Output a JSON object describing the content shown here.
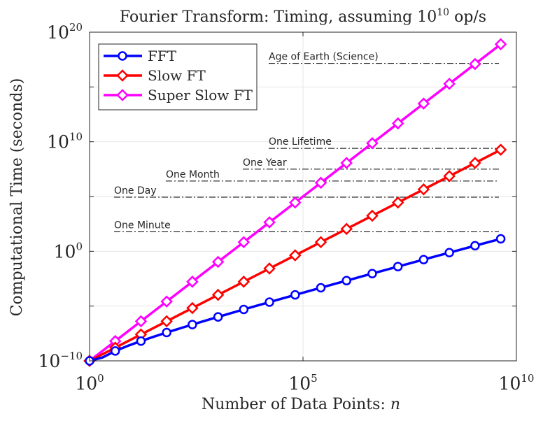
{
  "chart_data": {
    "type": "line",
    "title": "Fourier Transform: Timing, assuming 10^10 op/s",
    "title_parts": {
      "prefix": "Fourier Transform: Timing, assuming ",
      "base": "10",
      "exponent": "10",
      "suffix": " op/s"
    },
    "xlabel": "Number of Data Points: n",
    "xlabel_parts": {
      "text": "Number of Data Points: ",
      "var": "n"
    },
    "ylabel": "Computational Time (seconds)",
    "x_scale": "log",
    "y_scale": "log",
    "xlim": [
      1,
      10000000000
    ],
    "ylim": [
      1e-10,
      1e+20
    ],
    "x_ticks": [
      {
        "value": 1,
        "base": "10",
        "exp": "0"
      },
      {
        "value": 100000,
        "base": "10",
        "exp": "5"
      },
      {
        "value": 10000000000,
        "base": "10",
        "exp": "10"
      }
    ],
    "y_ticks": [
      {
        "value": 1e-10,
        "base": "10",
        "exp": "−10"
      },
      {
        "value": 1,
        "base": "10",
        "exp": "0"
      },
      {
        "value": 10000000000,
        "base": "10",
        "exp": "10"
      },
      {
        "value": 1e+20,
        "base": "10",
        "exp": "20"
      }
    ],
    "grid": true,
    "legend_position": "top-left",
    "x": [
      1,
      2,
      4,
      8,
      16,
      32,
      64,
      128,
      256,
      512,
      1024,
      2048,
      4096,
      8192,
      16384,
      32768,
      65536,
      131072,
      262144,
      524288,
      1048576,
      2097152,
      4194304,
      8388608,
      16777216,
      33554432,
      67108864,
      134217728,
      268435456,
      536870912,
      1073741824,
      2147483648,
      4294967296
    ],
    "series": [
      {
        "name": "FFT",
        "color": "#0000ff",
        "marker": "circle",
        "formula": "n*log2(n)/1e10",
        "marker_every": 2
      },
      {
        "name": "Slow FT",
        "color": "#ff0000",
        "marker": "diamond",
        "formula": "n^2/1e10",
        "marker_every": 2
      },
      {
        "name": "Super Slow FT",
        "color": "#ff00ff",
        "marker": "diamond",
        "formula": "n^3/1e10",
        "marker_every": 2
      }
    ],
    "reference_lines": [
      {
        "label": "One Minute",
        "value": 60
      },
      {
        "label": "One Day",
        "value": 86400
      },
      {
        "label": "One Month",
        "value": 2592000
      },
      {
        "label": "One Year",
        "value": 31536000
      },
      {
        "label": "One Lifetime",
        "value": 2500000000
      },
      {
        "label": "Age of Earth (Science)",
        "value": 1.43e+17
      }
    ],
    "colors": {
      "reference_line": "#000000",
      "grid": "#e6e6e6",
      "axis": "#262626"
    }
  }
}
